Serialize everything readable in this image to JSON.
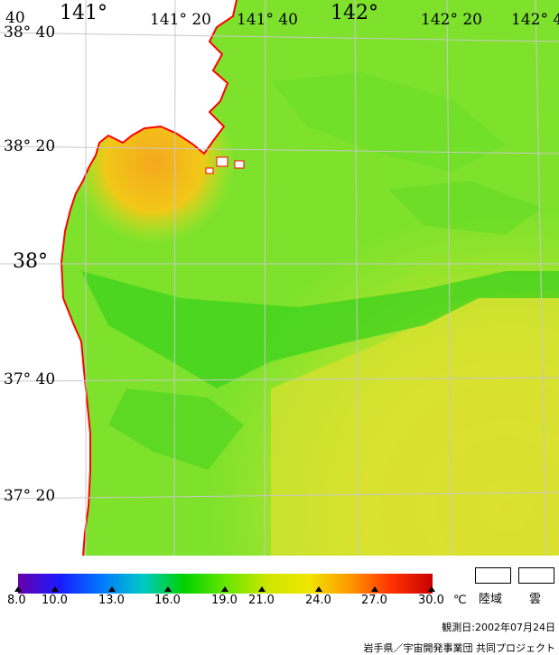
{
  "map": {
    "lon_labels": [
      {
        "text": "141°",
        "size": "lg"
      },
      {
        "text": "141° 20",
        "size": "sm"
      },
      {
        "text": "141° 40",
        "size": "sm"
      },
      {
        "text": "142°",
        "size": "lg"
      },
      {
        "text": "142° 20",
        "size": "sm"
      },
      {
        "text": "142° 4",
        "size": "sm"
      }
    ],
    "lat_labels": [
      {
        "text": "40",
        "size": "sm"
      },
      {
        "text": "38° 40",
        "size": "sm"
      },
      {
        "text": "38° 20",
        "size": "sm"
      },
      {
        "text": "38°",
        "size": "lg"
      },
      {
        "text": "37° 40",
        "size": "sm"
      },
      {
        "text": "37° 20",
        "size": "sm"
      }
    ],
    "colors": {
      "land": "#ffffff",
      "coastline": "#ff0000",
      "grid": "#c8c8c8"
    }
  },
  "legend": {
    "ticks": [
      "8.0",
      "10.0",
      "13.0",
      "16.0",
      "19.0",
      "21.0",
      "24.0",
      "27.0",
      "30.0"
    ],
    "unit": "℃",
    "scale_colors": [
      "#6600aa",
      "#1a1aff",
      "#0077ff",
      "#00c8c8",
      "#00d200",
      "#66e600",
      "#cce600",
      "#f0e600",
      "#ff9900",
      "#ff3300",
      "#c80000"
    ],
    "land_label": "陸域",
    "cloud_label": "雲",
    "observation_date": "観測日:2002年07月24日",
    "credit": "岩手県／宇宙開発事業団  共同プロジェクト"
  }
}
